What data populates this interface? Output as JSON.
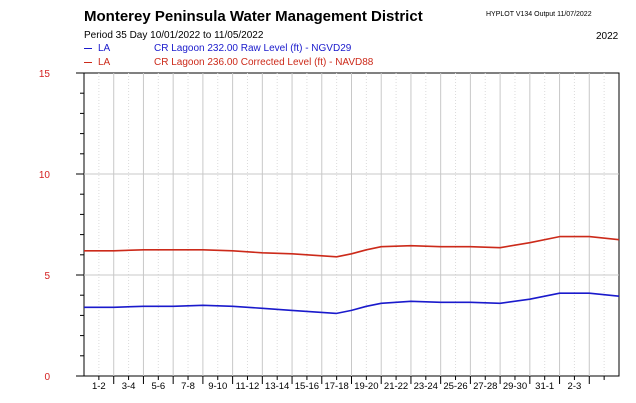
{
  "header": {
    "title": "Monterey Peninsula Water Management District",
    "program": "HYPLOT V134  Output 11/07/2022",
    "period_label": "Period  35 Day     10/01/2022  to  11/05/2022",
    "year": "2022"
  },
  "legend": [
    {
      "site": "LA",
      "description": "CR Lagoon  232.00 Raw Level (ft) - NGVD29",
      "color": "#1a1acc"
    },
    {
      "site": "LA",
      "description": "CR Lagoon  236.00 Corrected Level (ft) - NAVD88",
      "color": "#cc2a1a"
    }
  ],
  "chart_data": {
    "type": "line",
    "ylim": [
      0,
      15
    ],
    "y_ticks": [
      "0",
      "5",
      "10",
      "15"
    ],
    "y_tick_color": "#d42020",
    "x_range_days": [
      0,
      36
    ],
    "categories": [
      "1-2",
      "3-4",
      "5-6",
      "7-8",
      "9-10",
      "11-12",
      "13-14",
      "15-16",
      "17-18",
      "19-20",
      "21-22",
      "23-24",
      "25-26",
      "27-28",
      "29-30",
      "31-1",
      "2-3"
    ],
    "grid": true,
    "series": [
      {
        "name": "CR Lagoon  232.00 Raw Level (ft) - NGVD29",
        "color": "#1a1acc",
        "x": [
          0,
          2,
          4,
          6,
          8,
          10,
          12,
          14,
          16,
          17,
          18,
          19,
          20,
          22,
          24,
          26,
          28,
          30,
          32,
          34,
          36
        ],
        "y": [
          3.4,
          3.4,
          3.45,
          3.45,
          3.5,
          3.45,
          3.35,
          3.25,
          3.15,
          3.1,
          3.25,
          3.45,
          3.6,
          3.7,
          3.65,
          3.65,
          3.6,
          3.8,
          4.1,
          4.1,
          3.95
        ]
      },
      {
        "name": "CR Lagoon  236.00 Corrected Level (ft) - NAVD88",
        "color": "#cc2a1a",
        "x": [
          0,
          2,
          4,
          6,
          8,
          10,
          12,
          14,
          16,
          17,
          18,
          19,
          20,
          22,
          24,
          26,
          28,
          30,
          32,
          34,
          36
        ],
        "y": [
          6.2,
          6.2,
          6.25,
          6.25,
          6.25,
          6.2,
          6.1,
          6.05,
          5.95,
          5.9,
          6.05,
          6.25,
          6.4,
          6.45,
          6.4,
          6.4,
          6.35,
          6.6,
          6.9,
          6.9,
          6.75
        ]
      }
    ]
  }
}
